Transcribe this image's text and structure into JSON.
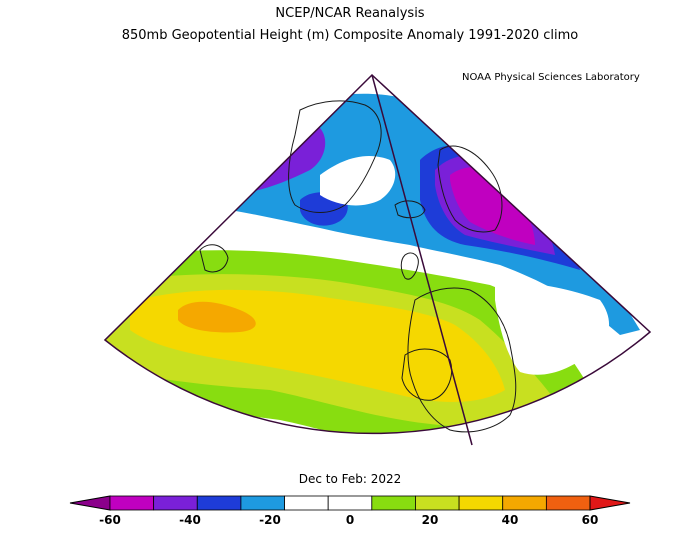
{
  "header": {
    "line1": "NCEP/NCAR Reanalysis",
    "line2": "850mb Geopotential Height (m) Composite Anomaly 1991-2020 climo",
    "credit": "NOAA Physical Sciences Laboratory"
  },
  "period_label": "Dec to Feb: 2022",
  "colorbar": {
    "min": -60,
    "max": 60,
    "step": 10,
    "colors": [
      "#8b008b",
      "#c000c0",
      "#7a20d8",
      "#1e3cd8",
      "#1e9ae0",
      "#ffffff",
      "#ffffff",
      "#88dd10",
      "#c8e020",
      "#f5d800",
      "#f5a800",
      "#f06010",
      "#e01818"
    ],
    "tick_values": [
      -60,
      -40,
      -20,
      0,
      20,
      40,
      60
    ],
    "tick_labels": [
      "-60",
      "-40",
      "-20",
      "0",
      "20",
      "40",
      "60"
    ]
  },
  "colors": {
    "outline": "#3a0a3a",
    "coast": "#1a1a1a"
  }
}
